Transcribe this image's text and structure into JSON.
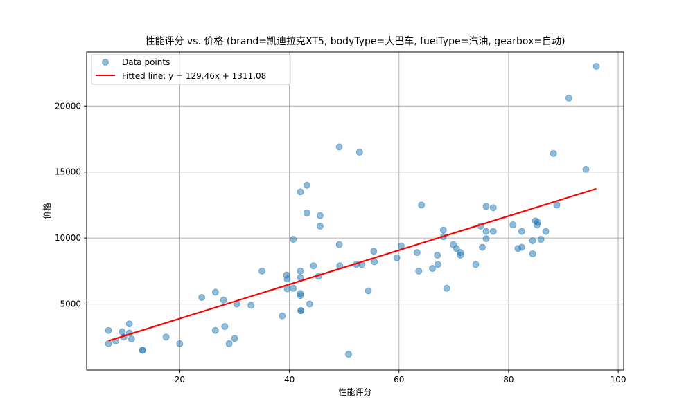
{
  "chart_data": {
    "type": "scatter",
    "title": "性能评分 vs. 价格 (brand=凯迪拉克XT5, bodyType=大巴车, fuelType=汽油, gearbox=自动)",
    "xlabel": "性能评分",
    "ylabel": "价格",
    "xlim": [
      3,
      101
    ],
    "ylim": [
      0,
      24100
    ],
    "xticks": [
      20,
      40,
      60,
      80,
      100
    ],
    "yticks": [
      5000,
      10000,
      15000,
      20000
    ],
    "grid": true,
    "legend_position": "top-left",
    "series": [
      {
        "name": "Data points",
        "kind": "scatter",
        "color": "#1f77b4",
        "alpha": 0.5,
        "points": [
          [
            7,
            3000
          ],
          [
            7,
            2000
          ],
          [
            8.3,
            2200
          ],
          [
            9.5,
            2900
          ],
          [
            9.8,
            2500
          ],
          [
            10.8,
            3500
          ],
          [
            10.8,
            2800
          ],
          [
            11.2,
            2350
          ],
          [
            13.2,
            1500
          ],
          [
            13.2,
            1500
          ],
          [
            17.5,
            2500
          ],
          [
            20,
            2000
          ],
          [
            24,
            5500
          ],
          [
            26.5,
            5900
          ],
          [
            26.5,
            3000
          ],
          [
            28,
            5300
          ],
          [
            28.2,
            3300
          ],
          [
            29,
            2000
          ],
          [
            30,
            2400
          ],
          [
            30.4,
            5000
          ],
          [
            33,
            4900
          ],
          [
            35,
            7500
          ],
          [
            38.7,
            4100
          ],
          [
            39.5,
            7200
          ],
          [
            39.6,
            6900
          ],
          [
            39.6,
            6150
          ],
          [
            40.7,
            9900
          ],
          [
            40.7,
            6200
          ],
          [
            42,
            13500
          ],
          [
            42,
            7500
          ],
          [
            42,
            7000
          ],
          [
            42,
            5800
          ],
          [
            42,
            5650
          ],
          [
            42.1,
            4500
          ],
          [
            42.1,
            4500
          ],
          [
            43.2,
            14000
          ],
          [
            43.2,
            11900
          ],
          [
            43.7,
            5000
          ],
          [
            44.4,
            7900
          ],
          [
            45.3,
            7100
          ],
          [
            45.6,
            11700
          ],
          [
            45.6,
            10900
          ],
          [
            49.1,
            16900
          ],
          [
            49.1,
            9500
          ],
          [
            49.2,
            7900
          ],
          [
            50.8,
            1200
          ],
          [
            52.2,
            8000
          ],
          [
            52.8,
            16500
          ],
          [
            53.2,
            8000
          ],
          [
            54.4,
            6000
          ],
          [
            55.4,
            9000
          ],
          [
            55.5,
            8200
          ],
          [
            59.6,
            8500
          ],
          [
            60.4,
            9400
          ],
          [
            63.3,
            8900
          ],
          [
            63.6,
            7500
          ],
          [
            64.1,
            12500
          ],
          [
            66.1,
            7700
          ],
          [
            67,
            8700
          ],
          [
            67.1,
            8000
          ],
          [
            68.1,
            10600
          ],
          [
            68.1,
            10100
          ],
          [
            68.7,
            6200
          ],
          [
            69.9,
            9500
          ],
          [
            70.5,
            9200
          ],
          [
            71.2,
            8900
          ],
          [
            71.2,
            8700
          ],
          [
            74,
            8000
          ],
          [
            74.9,
            10900
          ],
          [
            75.2,
            9300
          ],
          [
            75.9,
            12400
          ],
          [
            75.9,
            10500
          ],
          [
            75.9,
            9950
          ],
          [
            77.2,
            12300
          ],
          [
            77.2,
            10500
          ],
          [
            80.8,
            11000
          ],
          [
            81.7,
            9200
          ],
          [
            82.4,
            10500
          ],
          [
            82.4,
            9300
          ],
          [
            84.4,
            9800
          ],
          [
            84.4,
            8800
          ],
          [
            84.9,
            11300
          ],
          [
            85.2,
            11000
          ],
          [
            85.3,
            11200
          ],
          [
            85.9,
            9900
          ],
          [
            86.8,
            10500
          ],
          [
            88.2,
            16400
          ],
          [
            88.8,
            12500
          ],
          [
            91,
            20600
          ],
          [
            94.1,
            15200
          ],
          [
            96,
            23000
          ]
        ]
      },
      {
        "name": "Fitted line: y = 129.46x + 1311.08",
        "kind": "line",
        "color": "#ff0000",
        "slope": 129.46,
        "intercept": 1311.08,
        "x_range": [
          7,
          96
        ]
      }
    ]
  }
}
